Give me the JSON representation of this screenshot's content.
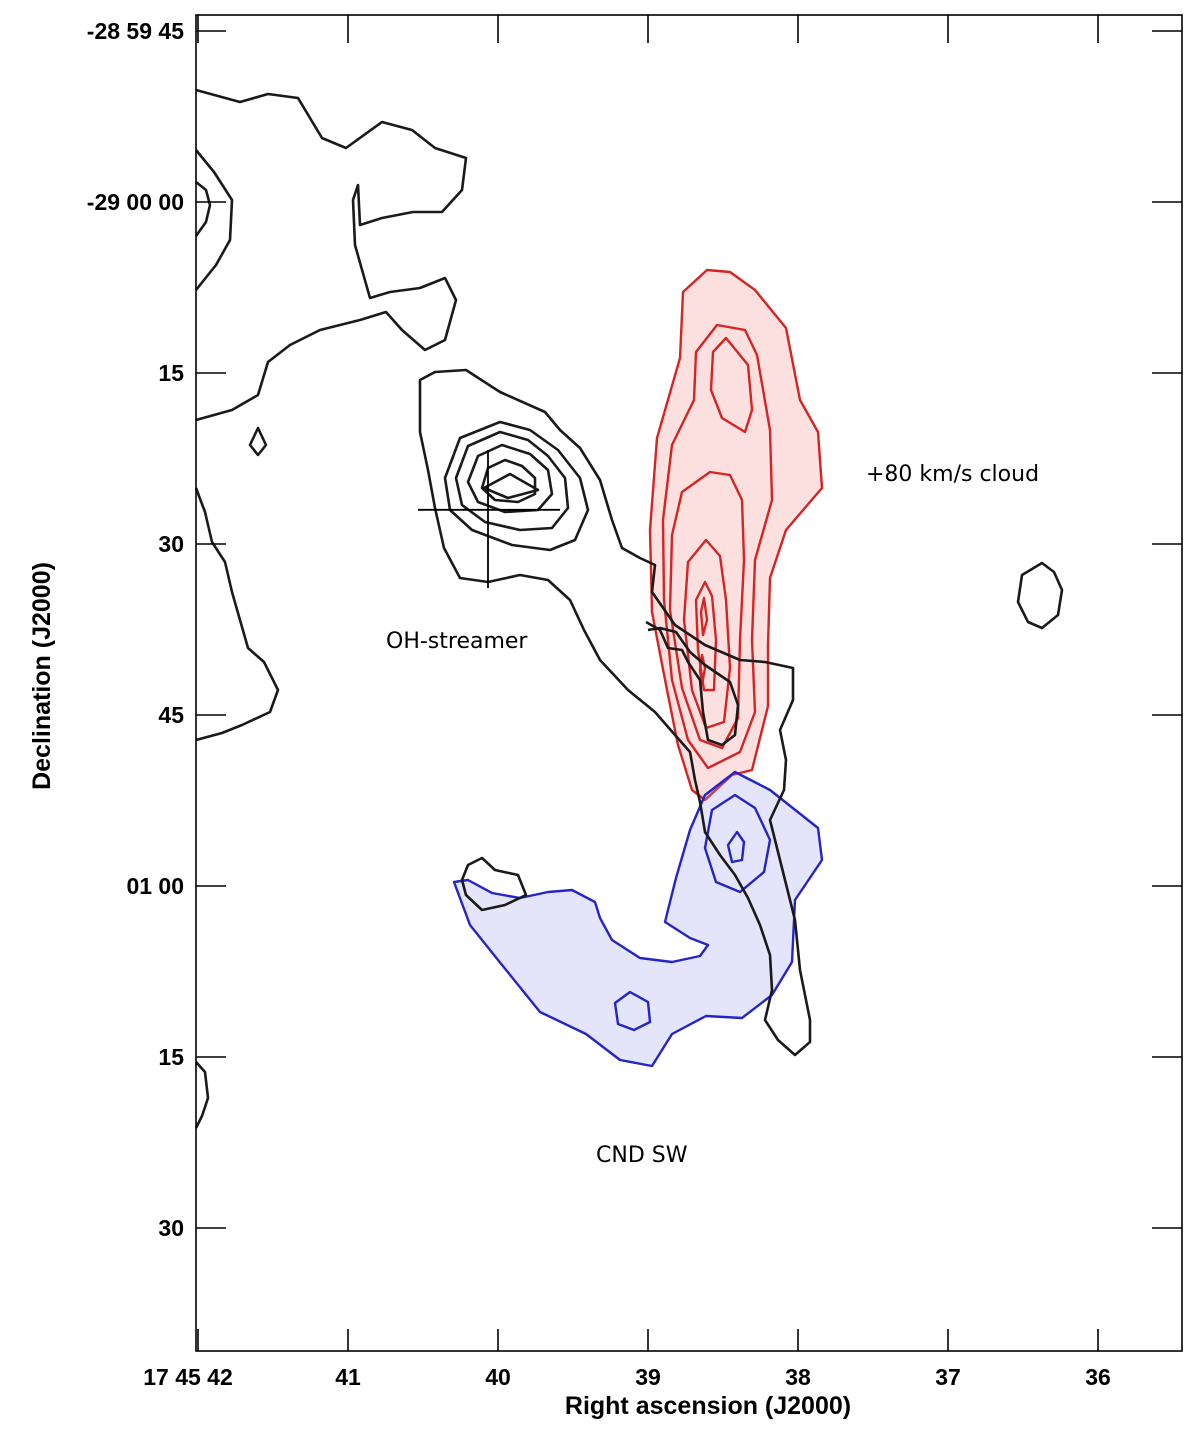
{
  "chart_data": {
    "type": "contour",
    "xlabel": "Right ascension (J2000)",
    "ylabel": "Declination (J2000)",
    "x_ticks": [
      "17 45 42",
      "41",
      "40",
      "39",
      "38",
      "37",
      "36"
    ],
    "y_ticks": [
      "-28 59 45",
      "-29 00 00",
      "15",
      "30",
      "45",
      "01 00",
      "15",
      "30"
    ],
    "x_tick_seconds": [
      42,
      41,
      40,
      39,
      38,
      37,
      36
    ],
    "y_tick_offset_arcsec": [
      -15,
      0,
      15,
      30,
      45,
      60,
      75,
      90
    ],
    "grid": false,
    "annotations": [
      "+80 km/s cloud",
      "OH-streamer",
      "CND SW"
    ],
    "marker": {
      "type": "cross",
      "ra_seconds": 40.0,
      "dec_offset_arcsec": 27
    },
    "series_colors": {
      "black": "#1a1a1a",
      "red": "#d42424",
      "blue": "#2424c8"
    }
  }
}
